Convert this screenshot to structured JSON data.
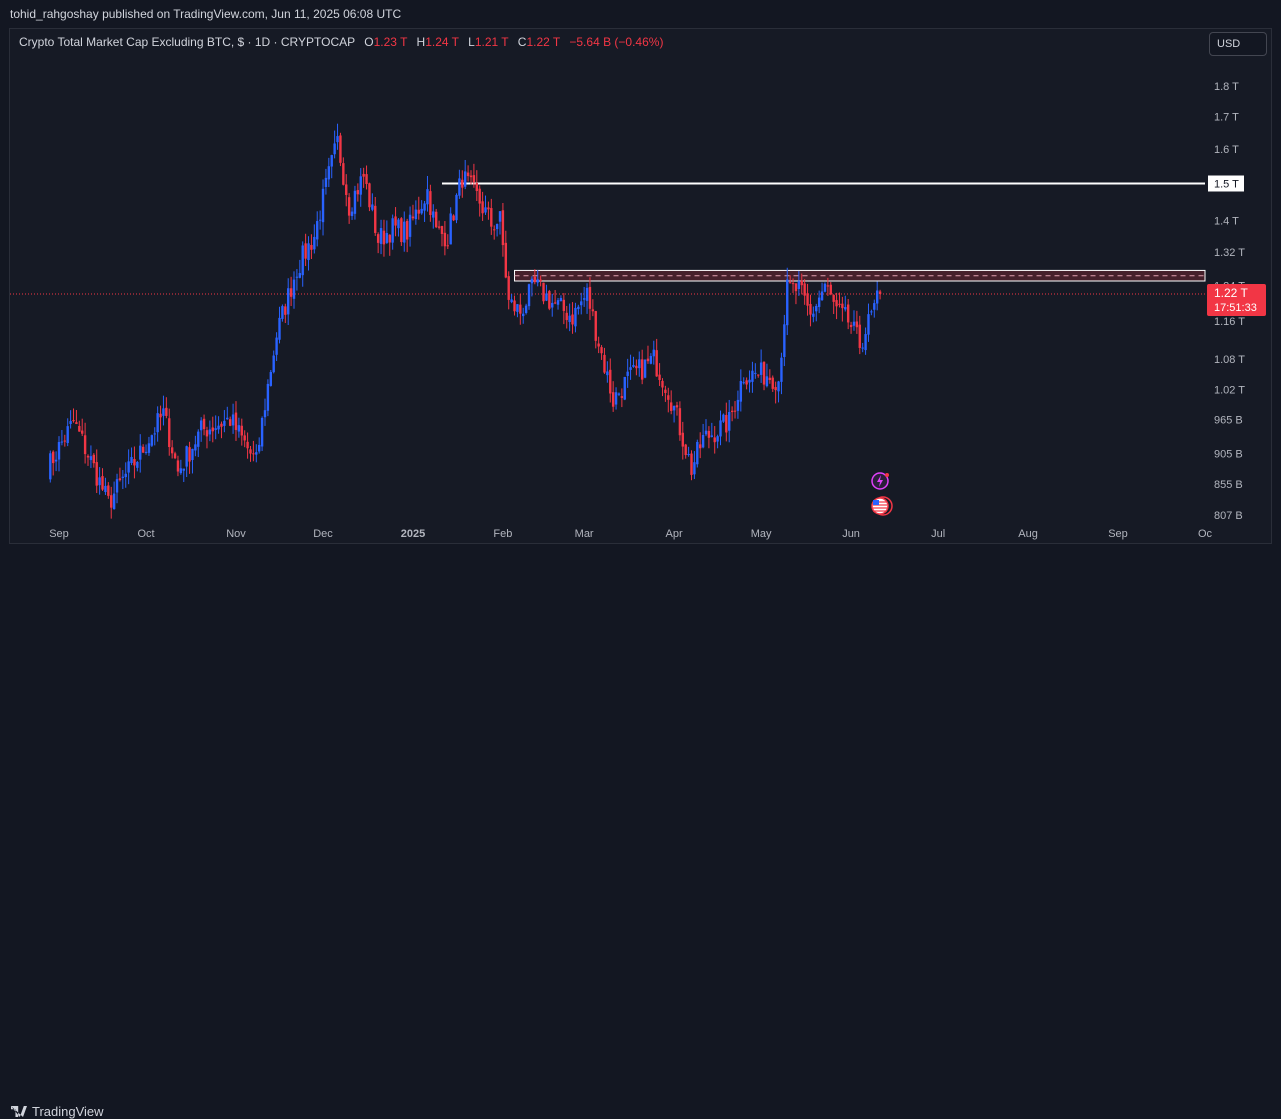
{
  "header": {
    "published_text": "tohid_rahgoshay published on TradingView.com, Jun 11, 2025 06:08 UTC"
  },
  "legend": {
    "symbol": "Crypto Total Market Cap Excluding BTC, $ · 1D · CRYPTOCAP",
    "o_label": "O",
    "o_value": "1.23 T",
    "h_label": "H",
    "h_value": "1.24 T",
    "l_label": "L",
    "l_value": "1.21 T",
    "c_label": "C",
    "c_value": "1.22 T",
    "change": "−5.64 B (−0.46%)"
  },
  "currency_button": "USD",
  "footer": {
    "brand": "TradingView"
  },
  "colors": {
    "up": "#2962ff",
    "down": "#f23645",
    "background": "#161a25",
    "line": "#ffffff",
    "zone": "#f23645"
  },
  "icons": [
    "flash-icon",
    "us-flag-icon",
    "tradingview-logo-icon"
  ],
  "chart_data": {
    "type": "candlestick",
    "title": "Crypto Total Market Cap Excluding BTC, $ · 1D · CRYPTOCAP",
    "y_scale": "log",
    "ylim_billions": [
      800,
      1950
    ],
    "xlim": [
      "2025-08-28",
      "2025-10-02"
    ],
    "x_ticks": [
      {
        "label": "Sep",
        "date": "2024-09-01"
      },
      {
        "label": "Oct",
        "date": "2024-10-01"
      },
      {
        "label": "Nov",
        "date": "2024-11-01"
      },
      {
        "label": "Dec",
        "date": "2024-12-01"
      },
      {
        "label": "2025",
        "date": "2025-01-01"
      },
      {
        "label": "Feb",
        "date": "2025-02-01"
      },
      {
        "label": "Mar",
        "date": "2025-03-01"
      },
      {
        "label": "Apr",
        "date": "2025-04-01"
      },
      {
        "label": "May",
        "date": "2025-05-01"
      },
      {
        "label": "Jun",
        "date": "2025-06-01"
      },
      {
        "label": "Jul",
        "date": "2025-07-01"
      },
      {
        "label": "Aug",
        "date": "2025-08-01"
      },
      {
        "label": "Sep",
        "date": "2025-09-01"
      },
      {
        "label": "Oc",
        "date": "2025-10-01"
      }
    ],
    "y_ticks": [
      {
        "label": "1.8 T",
        "value": 1800
      },
      {
        "label": "1.7 T",
        "value": 1700
      },
      {
        "label": "1.6 T",
        "value": 1600
      },
      {
        "label": "1.4 T",
        "value": 1400
      },
      {
        "label": "1.32 T",
        "value": 1320
      },
      {
        "label": "1.24 T",
        "value": 1240
      },
      {
        "label": "1.16 T",
        "value": 1160
      },
      {
        "label": "1.08 T",
        "value": 1080
      },
      {
        "label": "1.02 T",
        "value": 1020
      },
      {
        "label": "965 B",
        "value": 965
      },
      {
        "label": "905 B",
        "value": 905
      },
      {
        "label": "855 B",
        "value": 855
      },
      {
        "label": "807 B",
        "value": 807
      }
    ],
    "horizontal_line": {
      "value": 1500,
      "label": "1.5 T",
      "start": "2025-01-11"
    },
    "resistance_zone": {
      "low": 1250,
      "high": 1275,
      "start": "2025-02-05"
    },
    "last_price": {
      "value": 1220,
      "label": "1.22 T",
      "countdown": "17:51:33"
    },
    "anchors": [
      [
        "2024-08-28",
        880
      ],
      [
        "2024-09-06",
        960
      ],
      [
        "2024-09-14",
        870
      ],
      [
        "2024-09-18",
        825
      ],
      [
        "2024-09-29",
        905
      ],
      [
        "2024-10-07",
        975
      ],
      [
        "2024-10-12",
        875
      ],
      [
        "2024-10-20",
        945
      ],
      [
        "2024-10-30",
        965
      ],
      [
        "2024-11-06",
        905
      ],
      [
        "2024-11-08",
        890
      ],
      [
        "2024-11-15",
        1130
      ],
      [
        "2024-11-22",
        1280
      ],
      [
        "2024-11-28",
        1360
      ],
      [
        "2024-12-06",
        1620
      ],
      [
        "2024-12-10",
        1440
      ],
      [
        "2024-12-15",
        1520
      ],
      [
        "2024-12-20",
        1350
      ],
      [
        "2024-12-25",
        1380
      ],
      [
        "2024-12-30",
        1370
      ],
      [
        "2025-01-06",
        1480
      ],
      [
        "2025-01-09",
        1370
      ],
      [
        "2025-01-13",
        1360
      ],
      [
        "2025-01-18",
        1520
      ],
      [
        "2025-01-24",
        1450
      ],
      [
        "2025-01-28",
        1390
      ],
      [
        "2025-01-31",
        1400
      ],
      [
        "2025-02-03",
        1200
      ],
      [
        "2025-02-07",
        1180
      ],
      [
        "2025-02-12",
        1240
      ],
      [
        "2025-02-18",
        1200
      ],
      [
        "2025-02-25",
        1170
      ],
      [
        "2025-03-02",
        1220
      ],
      [
        "2025-03-07",
        1090
      ],
      [
        "2025-03-11",
        1000
      ],
      [
        "2025-03-16",
        1040
      ],
      [
        "2025-03-25",
        1080
      ],
      [
        "2025-03-30",
        1020
      ],
      [
        "2025-04-07",
        880
      ],
      [
        "2025-04-11",
        930
      ],
      [
        "2025-04-20",
        960
      ],
      [
        "2025-04-25",
        1050
      ],
      [
        "2025-05-03",
        1050
      ],
      [
        "2025-05-07",
        1040
      ],
      [
        "2025-05-10",
        1230
      ],
      [
        "2025-05-14",
        1230
      ],
      [
        "2025-05-18",
        1170
      ],
      [
        "2025-05-23",
        1240
      ],
      [
        "2025-05-27",
        1180
      ],
      [
        "2025-05-31",
        1160
      ],
      [
        "2025-06-04",
        1110
      ],
      [
        "2025-06-08",
        1170
      ],
      [
        "2025-06-11",
        1220
      ]
    ]
  }
}
